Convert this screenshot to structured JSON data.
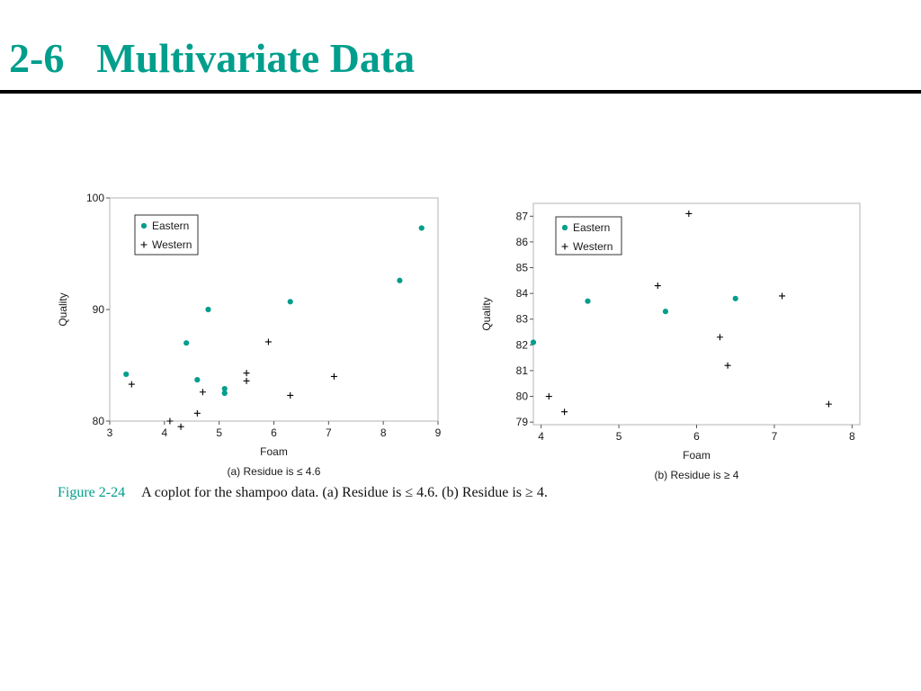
{
  "slide": {
    "title_number": "2-6",
    "title_text": "Multivariate Data"
  },
  "caption": {
    "label": "Figure 2-24",
    "text": "A coplot for the shampoo data. (a) Residue is ≤ 4.6. (b) Residue is ≥ 4."
  },
  "colors": {
    "accent": "#009e8c",
    "eastern_marker": "#009e8c",
    "western_marker": "#000000",
    "rule": "#000000"
  },
  "chart_data": [
    {
      "type": "scatter",
      "subtitle": "(a) Residue is ≤ 4.6",
      "xlabel": "Foam",
      "ylabel": "Quality",
      "xlim": [
        3,
        9
      ],
      "ylim": [
        80,
        100
      ],
      "xticks": [
        3,
        4,
        5,
        6,
        7,
        8,
        9
      ],
      "yticks": [
        80,
        90,
        100
      ],
      "grid": false,
      "legend": "top-left",
      "series": [
        {
          "name": "Eastern",
          "marker": "dot",
          "points": [
            [
              3.3,
              84.2
            ],
            [
              4.4,
              87.0
            ],
            [
              4.6,
              83.7
            ],
            [
              4.8,
              90.0
            ],
            [
              5.1,
              82.9
            ],
            [
              5.1,
              82.5
            ],
            [
              6.3,
              90.7
            ],
            [
              8.3,
              92.6
            ],
            [
              8.7,
              97.3
            ]
          ]
        },
        {
          "name": "Western",
          "marker": "plus",
          "points": [
            [
              3.4,
              83.3
            ],
            [
              4.1,
              80.0
            ],
            [
              4.3,
              79.5
            ],
            [
              4.6,
              80.7
            ],
            [
              4.7,
              82.6
            ],
            [
              5.5,
              84.3
            ],
            [
              5.5,
              83.6
            ],
            [
              5.9,
              87.1
            ],
            [
              6.3,
              82.3
            ],
            [
              7.1,
              84.0
            ]
          ]
        }
      ]
    },
    {
      "type": "scatter",
      "subtitle": "(b) Residue is ≥ 4",
      "xlabel": "Foam",
      "ylabel": "Quality",
      "xlim": [
        3.9,
        8.1
      ],
      "ylim": [
        78.9,
        87.5
      ],
      "xticks": [
        4,
        5,
        6,
        7,
        8
      ],
      "yticks": [
        79,
        80,
        81,
        82,
        83,
        84,
        85,
        86,
        87
      ],
      "grid": false,
      "legend": "top-left",
      "series": [
        {
          "name": "Eastern",
          "marker": "dot",
          "points": [
            [
              3.9,
              82.1
            ],
            [
              4.6,
              83.7
            ],
            [
              5.6,
              83.3
            ],
            [
              6.5,
              83.8
            ]
          ]
        },
        {
          "name": "Western",
          "marker": "plus",
          "points": [
            [
              4.1,
              80.0
            ],
            [
              4.3,
              79.4
            ],
            [
              5.5,
              84.3
            ],
            [
              5.9,
              87.1
            ],
            [
              6.3,
              82.3
            ],
            [
              6.4,
              81.2
            ],
            [
              7.1,
              83.9
            ],
            [
              7.7,
              79.7
            ]
          ]
        }
      ]
    }
  ]
}
